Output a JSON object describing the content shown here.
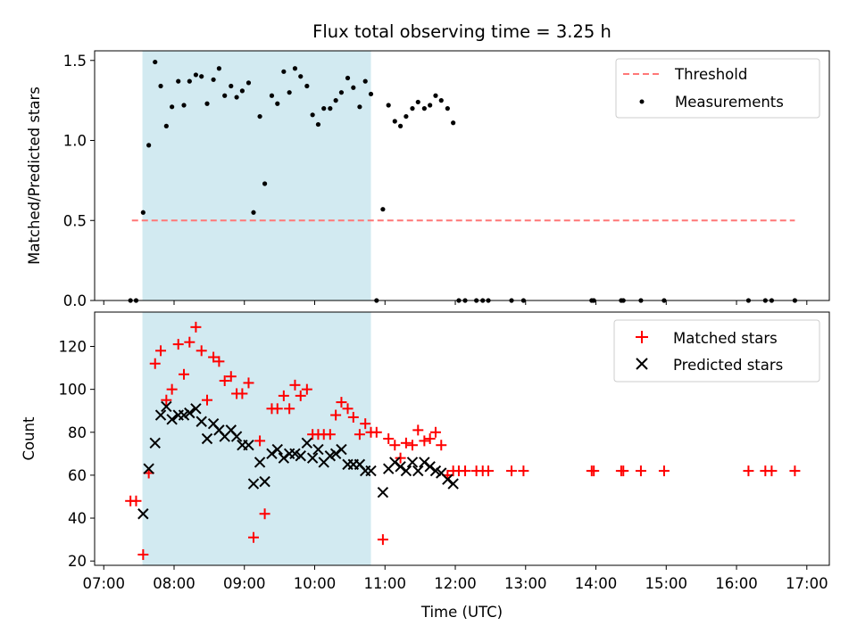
{
  "chart_data": [
    {
      "type": "scatter",
      "title": "Flux total observing time = 3.25 h",
      "xlabel": "",
      "ylabel": "Matched/Predicted stars",
      "xlim_hours": [
        6.87,
        17.32
      ],
      "ylim": [
        0,
        1.56
      ],
      "yticks": [
        0.0,
        0.5,
        1.0,
        1.5
      ],
      "ytick_labels": [
        "0.0",
        "0.5",
        "1.0",
        "1.5"
      ],
      "shaded_span_hours": [
        7.55,
        10.8
      ],
      "threshold": {
        "value": 0.5,
        "x_start": 7.4,
        "x_end": 16.83,
        "color": "#ff7777"
      },
      "legend": {
        "position": "top-right",
        "entries": [
          "Threshold",
          "Measurements"
        ]
      },
      "series": [
        {
          "name": "Measurements",
          "marker": "dot",
          "color": "#000000",
          "points": [
            [
              7.38,
              0.0
            ],
            [
              7.46,
              0.0
            ],
            [
              7.56,
              0.55
            ],
            [
              7.64,
              0.97
            ],
            [
              7.73,
              1.49
            ],
            [
              7.81,
              1.34
            ],
            [
              7.89,
              1.09
            ],
            [
              7.97,
              1.21
            ],
            [
              8.06,
              1.37
            ],
            [
              8.14,
              1.22
            ],
            [
              8.22,
              1.37
            ],
            [
              8.31,
              1.41
            ],
            [
              8.39,
              1.4
            ],
            [
              8.47,
              1.23
            ],
            [
              8.56,
              1.38
            ],
            [
              8.64,
              1.45
            ],
            [
              8.72,
              1.28
            ],
            [
              8.81,
              1.34
            ],
            [
              8.89,
              1.27
            ],
            [
              8.97,
              1.31
            ],
            [
              9.06,
              1.36
            ],
            [
              9.13,
              0.55
            ],
            [
              9.22,
              1.15
            ],
            [
              9.29,
              0.73
            ],
            [
              9.39,
              1.28
            ],
            [
              9.47,
              1.23
            ],
            [
              9.56,
              1.43
            ],
            [
              9.64,
              1.3
            ],
            [
              9.72,
              1.45
            ],
            [
              9.8,
              1.4
            ],
            [
              9.89,
              1.34
            ],
            [
              9.97,
              1.16
            ],
            [
              10.05,
              1.1
            ],
            [
              10.13,
              1.2
            ],
            [
              10.22,
              1.2
            ],
            [
              10.3,
              1.25
            ],
            [
              10.38,
              1.3
            ],
            [
              10.47,
              1.39
            ],
            [
              10.55,
              1.33
            ],
            [
              10.64,
              1.21
            ],
            [
              10.72,
              1.37
            ],
            [
              10.8,
              1.29
            ],
            [
              10.88,
              0.0
            ],
            [
              10.97,
              0.57
            ],
            [
              11.05,
              1.22
            ],
            [
              11.14,
              1.12
            ],
            [
              11.22,
              1.09
            ],
            [
              11.3,
              1.15
            ],
            [
              11.39,
              1.2
            ],
            [
              11.47,
              1.24
            ],
            [
              11.56,
              1.2
            ],
            [
              11.64,
              1.22
            ],
            [
              11.72,
              1.28
            ],
            [
              11.8,
              1.25
            ],
            [
              11.89,
              1.2
            ],
            [
              11.97,
              1.11
            ],
            [
              12.05,
              0.0
            ],
            [
              12.14,
              0.0
            ],
            [
              12.3,
              0.0
            ],
            [
              12.39,
              0.0
            ],
            [
              12.47,
              0.0
            ],
            [
              12.8,
              0.0
            ],
            [
              12.97,
              0.0
            ],
            [
              13.94,
              0.0
            ],
            [
              13.97,
              0.0
            ],
            [
              14.36,
              0.0
            ],
            [
              14.39,
              0.0
            ],
            [
              14.64,
              0.0
            ],
            [
              14.97,
              0.0
            ],
            [
              16.17,
              0.0
            ],
            [
              16.41,
              0.0
            ],
            [
              16.5,
              0.0
            ],
            [
              16.83,
              0.0
            ]
          ]
        }
      ]
    },
    {
      "type": "scatter",
      "title": "",
      "xlabel": "Time (UTC)",
      "ylabel": "Count",
      "xlim_hours": [
        6.87,
        17.32
      ],
      "ylim": [
        18,
        136
      ],
      "yticks": [
        20,
        40,
        60,
        80,
        100,
        120
      ],
      "ytick_labels": [
        "20",
        "40",
        "60",
        "80",
        "100",
        "120"
      ],
      "xticks_hours": [
        7,
        8,
        9,
        10,
        11,
        12,
        13,
        14,
        15,
        16,
        17
      ],
      "xtick_labels": [
        "07:00",
        "08:00",
        "09:00",
        "10:00",
        "11:00",
        "12:00",
        "13:00",
        "14:00",
        "15:00",
        "16:00",
        "17:00"
      ],
      "shaded_span_hours": [
        7.55,
        10.8
      ],
      "legend": {
        "position": "top-right",
        "entries": [
          "Matched stars",
          "Predicted stars"
        ]
      },
      "series": [
        {
          "name": "Matched stars",
          "marker": "plus",
          "color": "#ff0000",
          "points": [
            [
              7.38,
              48
            ],
            [
              7.46,
              48
            ],
            [
              7.56,
              23
            ],
            [
              7.64,
              61
            ],
            [
              7.73,
              112
            ],
            [
              7.81,
              118
            ],
            [
              7.89,
              95
            ],
            [
              7.97,
              100
            ],
            [
              8.06,
              121
            ],
            [
              8.14,
              107
            ],
            [
              8.22,
              122
            ],
            [
              8.31,
              129
            ],
            [
              8.39,
              118
            ],
            [
              8.47,
              95
            ],
            [
              8.56,
              115
            ],
            [
              8.64,
              113
            ],
            [
              8.72,
              104
            ],
            [
              8.81,
              106
            ],
            [
              8.89,
              98
            ],
            [
              8.97,
              98
            ],
            [
              9.06,
              103
            ],
            [
              9.13,
              31
            ],
            [
              9.22,
              76
            ],
            [
              9.29,
              42
            ],
            [
              9.39,
              91
            ],
            [
              9.47,
              91
            ],
            [
              9.56,
              97
            ],
            [
              9.64,
              91
            ],
            [
              9.72,
              102
            ],
            [
              9.8,
              97
            ],
            [
              9.89,
              100
            ],
            [
              9.97,
              79
            ],
            [
              10.05,
              79
            ],
            [
              10.13,
              79
            ],
            [
              10.22,
              79
            ],
            [
              10.3,
              88
            ],
            [
              10.38,
              94
            ],
            [
              10.47,
              91
            ],
            [
              10.55,
              87
            ],
            [
              10.64,
              79
            ],
            [
              10.72,
              84
            ],
            [
              10.8,
              80
            ],
            [
              10.88,
              80
            ],
            [
              10.97,
              30
            ],
            [
              11.05,
              77
            ],
            [
              11.14,
              74
            ],
            [
              11.22,
              68
            ],
            [
              11.3,
              75
            ],
            [
              11.39,
              74
            ],
            [
              11.47,
              81
            ],
            [
              11.56,
              76
            ],
            [
              11.64,
              77
            ],
            [
              11.72,
              80
            ],
            [
              11.8,
              74
            ],
            [
              11.89,
              60
            ],
            [
              11.97,
              62
            ],
            [
              12.05,
              62
            ],
            [
              12.14,
              62
            ],
            [
              12.3,
              62
            ],
            [
              12.39,
              62
            ],
            [
              12.47,
              62
            ],
            [
              12.8,
              62
            ],
            [
              12.97,
              62
            ],
            [
              13.94,
              62
            ],
            [
              13.97,
              62
            ],
            [
              14.36,
              62
            ],
            [
              14.39,
              62
            ],
            [
              14.64,
              62
            ],
            [
              14.97,
              62
            ],
            [
              16.17,
              62
            ],
            [
              16.41,
              62
            ],
            [
              16.5,
              62
            ],
            [
              16.83,
              62
            ]
          ]
        },
        {
          "name": "Predicted stars",
          "marker": "x",
          "color": "#000000",
          "points": [
            [
              7.56,
              42
            ],
            [
              7.64,
              63
            ],
            [
              7.73,
              75
            ],
            [
              7.81,
              88
            ],
            [
              7.89,
              92
            ],
            [
              7.97,
              86
            ],
            [
              8.06,
              88
            ],
            [
              8.14,
              88
            ],
            [
              8.22,
              89
            ],
            [
              8.31,
              91
            ],
            [
              8.39,
              85
            ],
            [
              8.47,
              77
            ],
            [
              8.56,
              84
            ],
            [
              8.64,
              81
            ],
            [
              8.72,
              78
            ],
            [
              8.81,
              81
            ],
            [
              8.89,
              78
            ],
            [
              8.97,
              74
            ],
            [
              9.06,
              74
            ],
            [
              9.13,
              56
            ],
            [
              9.22,
              66
            ],
            [
              9.29,
              57
            ],
            [
              9.39,
              70
            ],
            [
              9.47,
              72
            ],
            [
              9.56,
              68
            ],
            [
              9.64,
              70
            ],
            [
              9.72,
              70
            ],
            [
              9.8,
              69
            ],
            [
              9.89,
              75
            ],
            [
              9.97,
              68
            ],
            [
              10.05,
              72
            ],
            [
              10.13,
              66
            ],
            [
              10.22,
              69
            ],
            [
              10.3,
              70
            ],
            [
              10.38,
              72
            ],
            [
              10.47,
              65
            ],
            [
              10.55,
              65
            ],
            [
              10.64,
              65
            ],
            [
              10.72,
              62
            ],
            [
              10.8,
              62
            ],
            [
              10.97,
              52
            ],
            [
              11.05,
              63
            ],
            [
              11.14,
              66
            ],
            [
              11.22,
              64
            ],
            [
              11.3,
              62
            ],
            [
              11.39,
              66
            ],
            [
              11.47,
              62
            ],
            [
              11.56,
              66
            ],
            [
              11.64,
              64
            ],
            [
              11.72,
              62
            ],
            [
              11.8,
              61
            ],
            [
              11.89,
              58
            ],
            [
              11.97,
              56
            ]
          ]
        }
      ]
    }
  ]
}
